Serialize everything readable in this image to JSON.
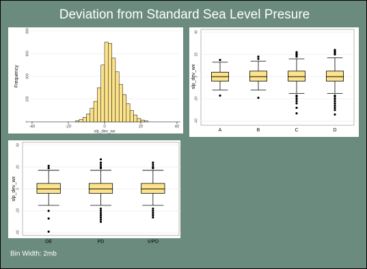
{
  "title": "Deviation from Standard Sea Level Presure",
  "chart_data": [
    {
      "type": "histogram",
      "xlabel": "slp_dev_wx",
      "ylabel": "Frequency",
      "note": "Bin Width: 2mb",
      "color": "#fde48c",
      "bins": [
        -16,
        -14,
        -12,
        -10,
        -8,
        -6,
        -4,
        -2,
        0,
        2,
        4,
        6,
        8,
        10,
        12,
        14,
        16,
        18,
        20,
        22,
        24
      ],
      "counts": [
        10,
        20,
        40,
        70,
        120,
        180,
        300,
        500,
        700,
        690,
        560,
        440,
        330,
        240,
        160,
        100,
        60,
        30,
        15,
        8
      ],
      "xlim": [
        -40,
        40
      ],
      "xticks": [
        -40,
        -20,
        0,
        20,
        40
      ],
      "ylim": [
        0,
        800
      ],
      "yticks": [
        0,
        200,
        400,
        600,
        800
      ],
      "grid": true
    },
    {
      "type": "box",
      "ylabel": "slp_dev_wx",
      "color": "#fde48c",
      "categories": [
        "A",
        "B",
        "C",
        "D"
      ],
      "whisker_low": [
        -12,
        -12,
        -15,
        -15
      ],
      "q1": [
        -4,
        -4,
        -4,
        -4
      ],
      "median": [
        0,
        0,
        0,
        0
      ],
      "q3": [
        4,
        5,
        5,
        5
      ],
      "whisker_high": [
        13,
        14,
        16,
        17
      ],
      "outliers": [
        [
          15,
          -17
        ],
        [
          18,
          16,
          -19
        ],
        [
          22,
          21,
          20,
          19,
          18,
          -17,
          -18,
          -20,
          -22,
          -24,
          -28,
          -33
        ],
        [
          24,
          23,
          22,
          21,
          20,
          -17,
          -18,
          -20,
          -22,
          -24,
          -26,
          -28,
          -30,
          -34
        ]
      ],
      "ylim": [
        -40,
        40
      ],
      "yticks": [
        -40,
        -20,
        0,
        20,
        40
      ],
      "grid": true
    },
    {
      "type": "box",
      "ylabel": "slp_dev_wx",
      "color": "#fde48c",
      "categories": [
        "OE",
        "PD",
        "V/PD"
      ],
      "whisker_low": [
        -15,
        -15,
        -15
      ],
      "q1": [
        -4,
        -4,
        -4
      ],
      "median": [
        0,
        0,
        0
      ],
      "q3": [
        5,
        5,
        5
      ],
      "whisker_high": [
        17,
        17,
        17
      ],
      "outliers": [
        [
          21,
          19,
          -20,
          -27,
          -39
        ],
        [
          27,
          24,
          22,
          20,
          19,
          -18,
          -20,
          -22,
          -24,
          -26,
          -28,
          -30
        ],
        [
          24,
          22,
          20,
          19,
          -18,
          -20,
          -22,
          -24,
          -26
        ]
      ],
      "ylim": [
        -40,
        40
      ],
      "yticks": [
        -40,
        -20,
        0,
        20,
        40
      ],
      "grid": true
    }
  ]
}
